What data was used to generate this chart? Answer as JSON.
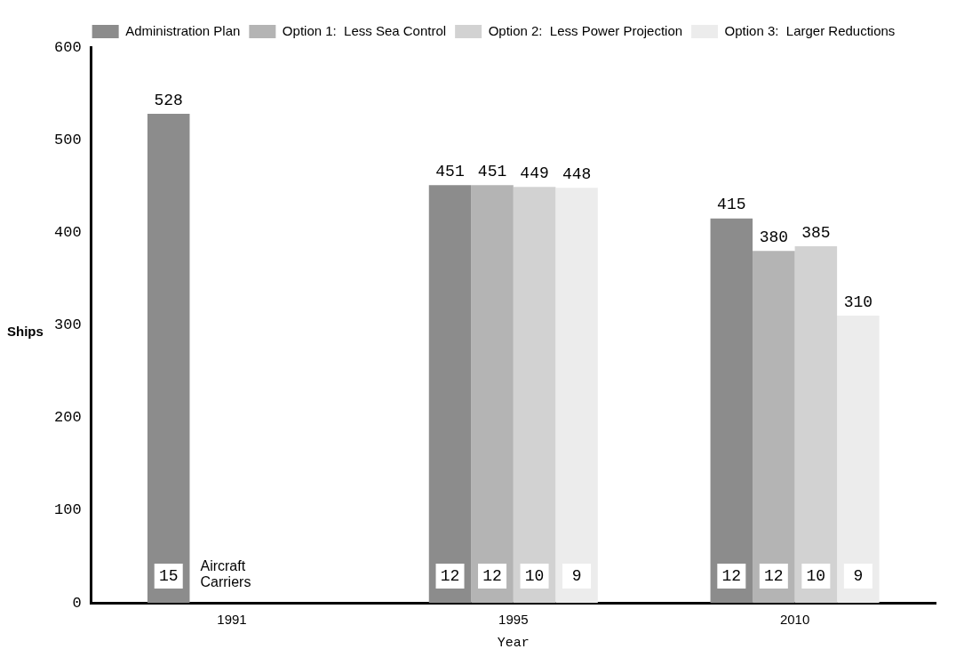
{
  "chart_data": {
    "type": "bar",
    "xlabel": "Year",
    "ylabel": "Ships",
    "categories": [
      "1991",
      "1995",
      "2010"
    ],
    "series": [
      {
        "name": "Administration Plan",
        "color": "#8c8c8c",
        "values": [
          528,
          451,
          415
        ]
      },
      {
        "name": "Option 1:  Less Sea Control",
        "color": "#b4b4b4",
        "values": [
          null,
          451,
          380
        ]
      },
      {
        "name": "Option 2:  Less Power Projection",
        "color": "#d2d2d2",
        "values": [
          null,
          449,
          385
        ]
      },
      {
        "name": "Option 3:  Larger Reductions",
        "color": "#ececec",
        "values": [
          null,
          448,
          310
        ]
      }
    ],
    "ylim": [
      0,
      600
    ],
    "yticks": [
      0,
      100,
      200,
      300,
      400,
      500,
      600
    ],
    "grid": false,
    "legend": "top",
    "data_labels": true,
    "annotations": [
      "Aircraft Carriers",
      "15",
      "12",
      "12",
      "10",
      "9",
      "12",
      "12",
      "10",
      "9"
    ]
  }
}
